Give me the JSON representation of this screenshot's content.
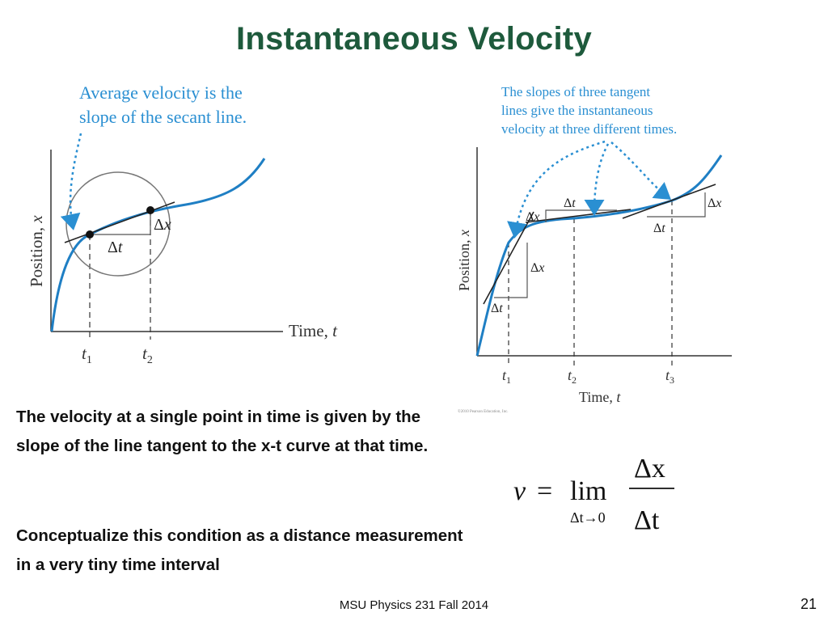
{
  "slide": {
    "title": "Instantaneous Velocity",
    "paragraph1": "The velocity at a single point in time is given by the slope of the line tangent to the x-t curve at that time.",
    "paragraph2": "Conceptualize this condition as a distance measurement in a very tiny time interval",
    "footer": "MSU Physics 231 Fall 2014",
    "slide_number": "21"
  },
  "left_figure": {
    "callout_line1": "Average velocity is the",
    "callout_line2": "slope of the secant line.",
    "y_axis_label": "Position, ",
    "y_axis_var": "x",
    "x_axis_label": "Time, ",
    "x_axis_var": "t",
    "t1_var": "t",
    "t1_sub": "1",
    "t2_var": "t",
    "t2_sub": "2",
    "delta": "Δ",
    "dx_var": "x",
    "dt_var": "t"
  },
  "right_figure": {
    "callout_line1": "The slopes of three tangent",
    "callout_line2": "lines give the instantaneous",
    "callout_line3": "velocity at three different times.",
    "y_axis_label": "Position, ",
    "y_axis_var": "x",
    "x_axis_label": "Time, ",
    "x_axis_var": "t",
    "t1_var": "t",
    "t1_sub": "1",
    "t2_var": "t",
    "t2_sub": "2",
    "t3_var": "t",
    "t3_sub": "3",
    "delta": "Δ",
    "dx_var": "x",
    "dt_var": "t",
    "copyright": "©2010 Pearson Education, Inc."
  },
  "equation": {
    "v": "v",
    "equals": "=",
    "lim": "lim",
    "limit_subscript": "Δt→0",
    "numerator": "Δx",
    "denominator": "Δt"
  },
  "colors": {
    "title": "#1e5a3c",
    "curve": "#1f7fc4",
    "callout": "#2a8fd2",
    "axis": "#333333"
  }
}
